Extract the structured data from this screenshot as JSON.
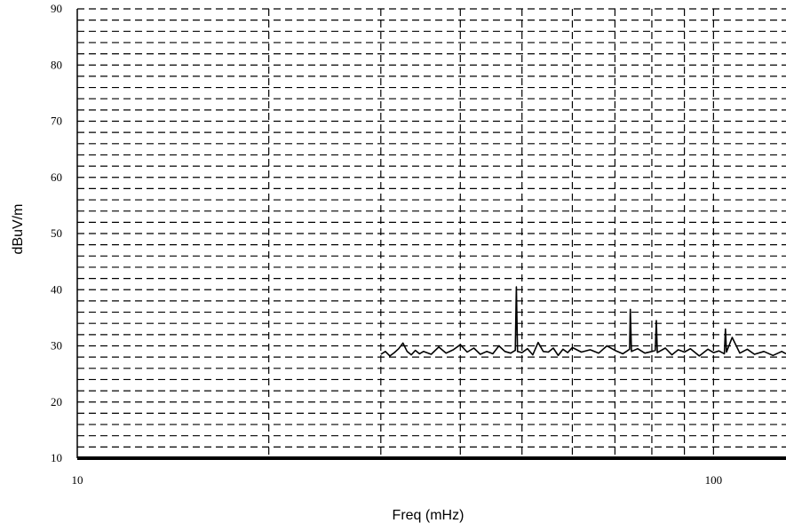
{
  "chart_data": {
    "type": "line",
    "title": "",
    "xlabel": "Freq (mHz)",
    "ylabel": "dBuV/m",
    "xscale": "log",
    "xlim": [
      10,
      130
    ],
    "ylim": [
      10,
      90
    ],
    "x_tick_labels": [
      "10",
      "100"
    ],
    "x_major_grid": [
      20,
      30,
      40,
      50,
      60,
      70,
      80,
      90,
      100
    ],
    "y_tick_labels": [
      "10",
      "20",
      "30",
      "40",
      "50",
      "60",
      "70",
      "80",
      "90"
    ],
    "y_ticks": [
      10,
      20,
      30,
      40,
      50,
      60,
      70,
      80,
      90
    ],
    "y_minor_step": 2,
    "grid": true,
    "grid_style": "dashed",
    "line_color": "#000000",
    "series": [
      {
        "x": [
          30.0,
          30.5,
          31.0,
          31.5,
          32.0,
          32.5,
          33.0,
          33.5,
          34.0,
          34.5,
          35.0,
          36.0,
          37.0,
          38.0,
          39.0,
          40.0,
          41.0,
          42.0,
          43.0,
          44.0,
          45.0,
          46.0,
          47.0,
          48.0,
          48.8,
          49.0,
          49.2,
          50.0,
          51.0,
          52.0,
          53.0,
          54.0,
          55.0,
          56.0,
          57.0,
          58.0,
          59.0,
          60.0,
          62.0,
          64.0,
          66.0,
          68.0,
          70.0,
          72.0,
          73.8,
          74.0,
          74.3,
          76.0,
          78.0,
          80.0,
          81.0,
          81.3,
          81.6,
          84.0,
          86.0,
          88.0,
          90.0,
          92.0,
          95.0,
          98.0,
          100.0,
          102.0,
          104.0,
          104.4,
          104.8,
          107.0,
          110.0,
          113.0,
          116.0,
          120.0,
          124.0,
          128.0,
          130.0
        ],
        "y": [
          28.5,
          29.0,
          28.2,
          28.8,
          29.5,
          30.5,
          29.0,
          28.4,
          29.2,
          28.6,
          29.0,
          28.5,
          29.8,
          28.7,
          29.3,
          30.2,
          28.9,
          29.6,
          28.5,
          29.0,
          28.6,
          30.0,
          29.0,
          28.7,
          29.2,
          40.5,
          29.0,
          28.8,
          29.5,
          28.4,
          30.6,
          29.0,
          28.9,
          29.6,
          28.3,
          29.4,
          28.8,
          29.7,
          28.9,
          29.3,
          28.7,
          30.0,
          29.2,
          28.6,
          29.4,
          36.5,
          29.0,
          29.5,
          28.7,
          29.0,
          29.2,
          34.5,
          28.8,
          29.6,
          28.4,
          29.3,
          28.9,
          29.5,
          28.2,
          29.4,
          28.8,
          29.1,
          28.6,
          33.0,
          28.9,
          31.5,
          28.7,
          29.4,
          28.5,
          29.0,
          28.3,
          29.0,
          28.6
        ]
      }
    ]
  }
}
